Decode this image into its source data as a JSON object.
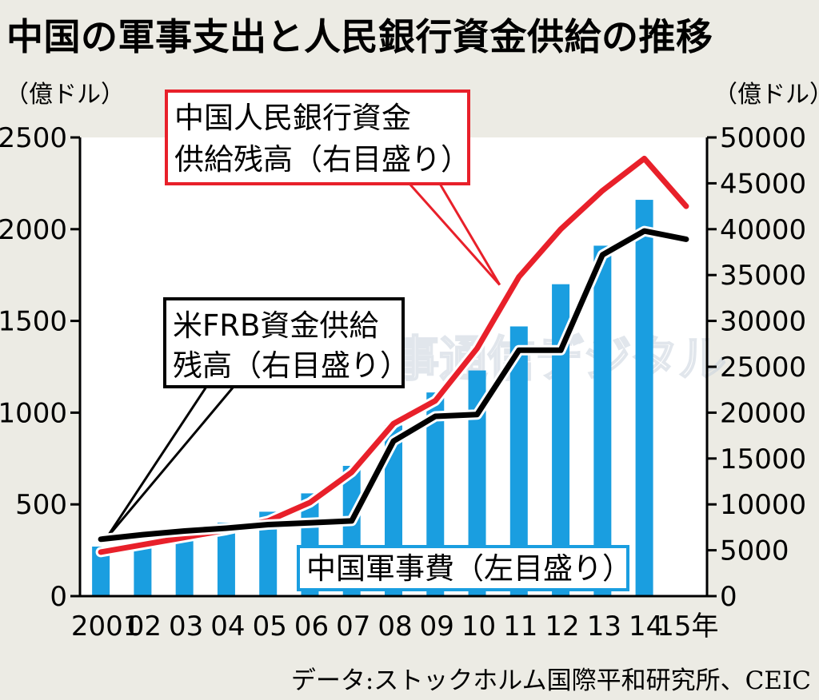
{
  "chart_data": {
    "type": "bar",
    "title": "中国の軍事支出と人民銀行資金供給の推移",
    "left_unit": "（億ドル）",
    "right_unit": "（億ドル）",
    "categories": [
      "2001",
      "02",
      "03",
      "04",
      "05",
      "06",
      "07",
      "08",
      "09",
      "10",
      "11",
      "12",
      "13",
      "14",
      "15年"
    ],
    "left_ylim": [
      0,
      2500
    ],
    "right_ylim": [
      0,
      50000
    ],
    "left_ticks": [
      "0",
      "500",
      "1000",
      "1500",
      "2000",
      "2500"
    ],
    "right_ticks": [
      "0",
      "5000",
      "10000",
      "15000",
      "20000",
      "25000",
      "30000",
      "35000",
      "40000",
      "45000",
      "50000"
    ],
    "series": [
      {
        "name": "中国軍事費（左目盛り）",
        "type": "bar",
        "axis": "left",
        "color": "#1a9ee0",
        "values": [
          270,
          300,
          330,
          400,
          460,
          560,
          710,
          930,
          1110,
          1230,
          1470,
          1700,
          1910,
          2160,
          null
        ]
      },
      {
        "name": "中国人民銀行資金供給残高（右目盛り）",
        "type": "line",
        "axis": "right",
        "color": "#e8202a",
        "values": [
          4800,
          5600,
          6400,
          7200,
          8200,
          10200,
          13500,
          18800,
          21300,
          27000,
          34800,
          40000,
          44200,
          47700,
          42500
        ]
      },
      {
        "name": "米FRB資金供給残高（右目盛り）",
        "type": "line",
        "axis": "right",
        "color": "#000000",
        "values": [
          6200,
          6700,
          7100,
          7400,
          7800,
          8000,
          8200,
          16900,
          19600,
          19800,
          26800,
          26800,
          37200,
          39800,
          38900
        ]
      }
    ],
    "callouts": {
      "pboc": [
        "中国人民銀行資金",
        "供給残高（右目盛り）"
      ],
      "frb": [
        "米FRB資金供給",
        "残高（右目盛り）"
      ],
      "military": "中国軍事費（左目盛り）"
    },
    "source": "データ:ストックホルム国際平和研究所、CEIC",
    "watermark": "※ 時事通信デジタル"
  }
}
